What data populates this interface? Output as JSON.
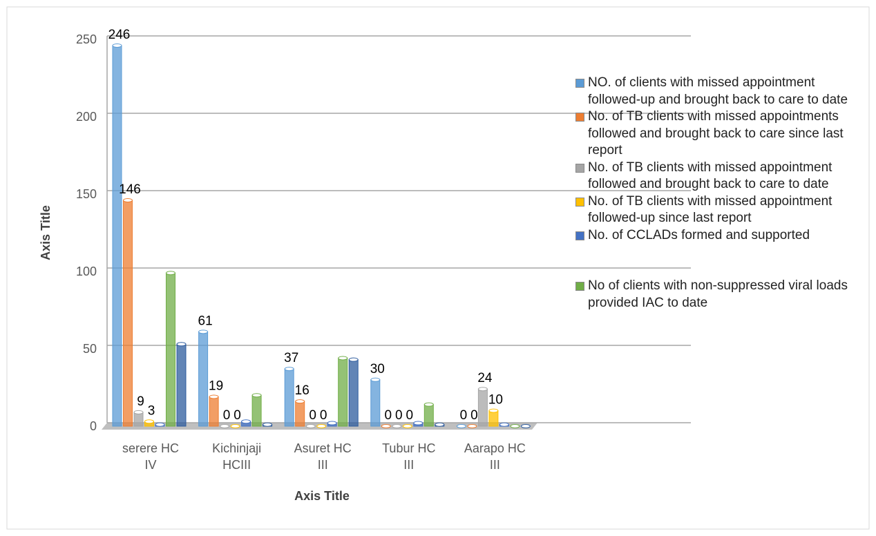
{
  "chart_data": {
    "type": "bar",
    "xlabel": "Axis Title",
    "ylabel": "Axis Title",
    "categories": [
      "serere  HC IV",
      "Kichinjaji HCIII",
      "Asuret  HC III",
      "Tubur HC III",
      "Aarapo HC III"
    ],
    "series": [
      {
        "name": "NO.  of clients with missed appointment  followed-up and brought back to care to date",
        "color": "#5b9bd5",
        "values": [
          246,
          61,
          37,
          30,
          0
        ],
        "data_labels": true
      },
      {
        "name": "No. of TB clients with missed appointments followed and brought back to care since last report",
        "color": "#ed7d31",
        "values": [
          146,
          19,
          16,
          0,
          0
        ],
        "data_labels": true
      },
      {
        "name": "No. of TB clients with missed appointment followed and brought back to care to date",
        "color": "#a5a5a5",
        "values": [
          9,
          0,
          0,
          0,
          24
        ],
        "data_labels": true
      },
      {
        "name": "No. of TB clients with missed appointment followed-up since last report",
        "color": "#ffc000",
        "values": [
          3,
          0,
          0,
          0,
          10
        ],
        "data_labels": true
      },
      {
        "name": "No. of CCLADs formed and supported",
        "color": "#4472c4",
        "values": [
          1,
          3,
          2,
          2,
          1
        ]
      },
      {
        "color": "#2e5c9e",
        "values": [
          53,
          1,
          43,
          1,
          0
        ]
      },
      {
        "name": "No of clients with non-suppressed viral loads provided IAC to date",
        "color": "#70ad47",
        "values": [
          99,
          20,
          44,
          14,
          0
        ]
      }
    ],
    "ylim": [
      0,
      250
    ],
    "yticks": [
      0,
      50,
      100,
      150,
      200,
      250
    ],
    "grid": true
  }
}
